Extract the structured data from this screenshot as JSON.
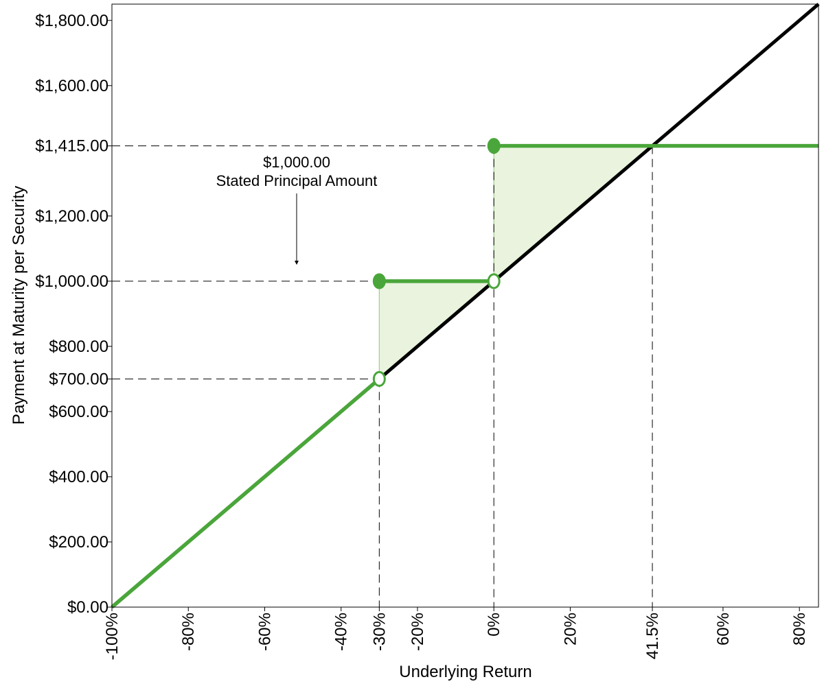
{
  "chart_data": {
    "type": "line",
    "xlabel": "Underlying Return",
    "ylabel": "Payment at Maturity per Security",
    "xlim": [
      -100,
      85
    ],
    "ylim": [
      0,
      1850
    ],
    "x_ticks": [
      {
        "value": -100,
        "label": "-100%"
      },
      {
        "value": -80,
        "label": "-80%"
      },
      {
        "value": -60,
        "label": "-60%"
      },
      {
        "value": -40,
        "label": "-40%"
      },
      {
        "value": -30,
        "label": "-30%"
      },
      {
        "value": -20,
        "label": "-20%"
      },
      {
        "value": 0,
        "label": "0%"
      },
      {
        "value": 20,
        "label": "20%"
      },
      {
        "value": 41.5,
        "label": "41.5%"
      },
      {
        "value": 60,
        "label": "60%"
      },
      {
        "value": 80,
        "label": "80%"
      }
    ],
    "y_ticks": [
      {
        "value": 0,
        "label": "$0.00"
      },
      {
        "value": 200,
        "label": "$200.00"
      },
      {
        "value": 400,
        "label": "$400.00"
      },
      {
        "value": 600,
        "label": "$600.00"
      },
      {
        "value": 700,
        "label": "$700.00"
      },
      {
        "value": 800,
        "label": "$800.00"
      },
      {
        "value": 1000,
        "label": "$1,000.00"
      },
      {
        "value": 1200,
        "label": "$1,200.00"
      },
      {
        "value": 1415,
        "label": "$1,415.00"
      },
      {
        "value": 1600,
        "label": "$1,600.00"
      },
      {
        "value": 1800,
        "label": "$1,800.00"
      }
    ],
    "series": [
      {
        "color": "#000000",
        "points": [
          [
            -100,
            0
          ],
          [
            85,
            1850
          ]
        ]
      },
      {
        "color": "#4aa63a",
        "segments": [
          [
            [
              -100,
              0
            ],
            [
              -30,
              700
            ]
          ],
          [
            [
              -30,
              1000
            ],
            [
              0,
              1000
            ]
          ],
          [
            [
              0,
              1415
            ],
            [
              85,
              1415
            ]
          ]
        ],
        "filled_markers": [
          [
            -30,
            1000
          ],
          [
            0,
            1415
          ]
        ],
        "open_markers": [
          [
            -30,
            700
          ],
          [
            0,
            1000
          ]
        ]
      }
    ],
    "shaded_regions": [
      [
        [
          -30,
          700
        ],
        [
          -30,
          1000
        ],
        [
          0,
          1000
        ]
      ],
      [
        [
          0,
          1000
        ],
        [
          0,
          1415
        ],
        [
          41.5,
          1415
        ]
      ]
    ],
    "reference_lines": {
      "horizontal": [
        700,
        1000,
        1415
      ],
      "vertical": [
        -30,
        0,
        41.5
      ]
    },
    "annotation": {
      "lines": [
        "$1,000.00",
        "Stated Principal Amount"
      ]
    },
    "grid": false
  }
}
